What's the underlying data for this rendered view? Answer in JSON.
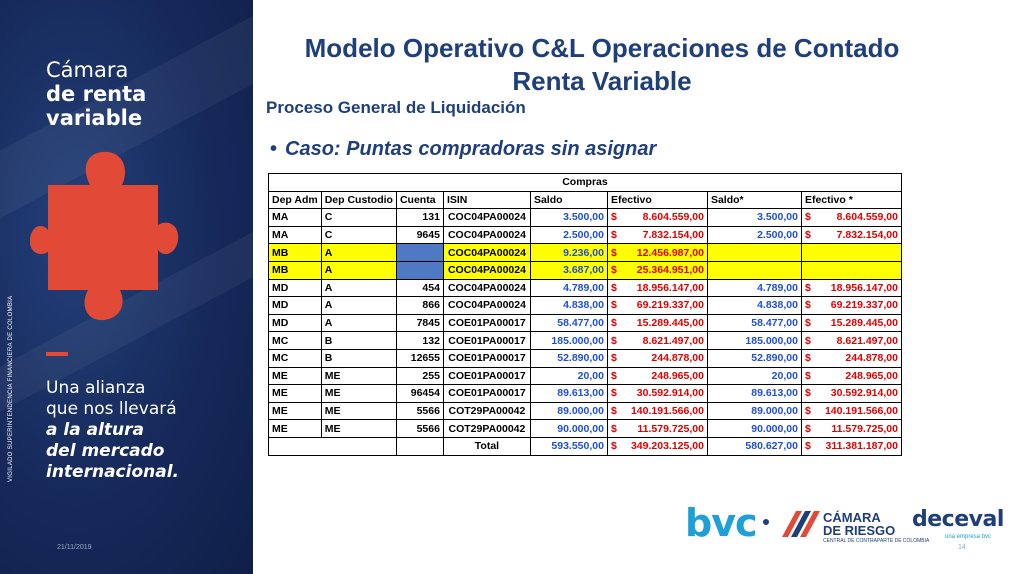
{
  "left_panel": {
    "brand_line1": "Cámara",
    "brand_line2": "de renta",
    "brand_line3": "variable",
    "tagline_1": "Una alianza",
    "tagline_2": "que nos llevará",
    "tagline_3": "a la altura",
    "tagline_4": "del mercado",
    "tagline_5": "internacional.",
    "vigilado": "VIGILADO SUPERINTENDENCIA FINANCIERA DE COLOMBIA",
    "date": "21/11/2019",
    "colors": {
      "background": "#16295a",
      "puzzle": "#e04a36",
      "accent_dash": "#e04a36"
    }
  },
  "header": {
    "title_line1": "Modelo Operativo C&L Operaciones de Contado",
    "title_line2": "Renta Variable",
    "subtitle": "Proceso General de Liquidación",
    "bullet": "Caso: Puntas compradoras sin asignar"
  },
  "table": {
    "group_header": "Compras",
    "columns": [
      "Dep Adm",
      "Dep Custodio",
      "Cuenta",
      "ISIN",
      "Saldo",
      "Efectivo",
      "Saldo*",
      "Efectivo *"
    ],
    "currency_symbol": "$",
    "rows": [
      {
        "dep_adm": "MA",
        "dep_custodio": "C",
        "cuenta": "131",
        "isin": "COC04PA00024",
        "saldo": "3.500,00",
        "efectivo": "8.604.559,00",
        "saldo2": "3.500,00",
        "efectivo2": "8.604.559,00",
        "highlight": false
      },
      {
        "dep_adm": "MA",
        "dep_custodio": "C",
        "cuenta": "9645",
        "isin": "COC04PA00024",
        "saldo": "2.500,00",
        "efectivo": "7.832.154,00",
        "saldo2": "2.500,00",
        "efectivo2": "7.832.154,00",
        "highlight": false
      },
      {
        "dep_adm": "MB",
        "dep_custodio": "A",
        "cuenta": "",
        "isin": "COC04PA00024",
        "saldo": "9.236,00",
        "efectivo": "12.456.987,00",
        "saldo2": "",
        "efectivo2": "",
        "highlight": true
      },
      {
        "dep_adm": "MB",
        "dep_custodio": "A",
        "cuenta": "",
        "isin": "COC04PA00024",
        "saldo": "3.687,00",
        "efectivo": "25.364.951,00",
        "saldo2": "",
        "efectivo2": "",
        "highlight": true
      },
      {
        "dep_adm": "MD",
        "dep_custodio": "A",
        "cuenta": "454",
        "isin": "COC04PA00024",
        "saldo": "4.789,00",
        "efectivo": "18.956.147,00",
        "saldo2": "4.789,00",
        "efectivo2": "18.956.147,00",
        "highlight": false
      },
      {
        "dep_adm": "MD",
        "dep_custodio": "A",
        "cuenta": "866",
        "isin": "COC04PA00024",
        "saldo": "4.838,00",
        "efectivo": "69.219.337,00",
        "saldo2": "4.838,00",
        "efectivo2": "69.219.337,00",
        "highlight": false
      },
      {
        "dep_adm": "MD",
        "dep_custodio": "A",
        "cuenta": "7845",
        "isin": "COE01PA00017",
        "saldo": "58.477,00",
        "efectivo": "15.289.445,00",
        "saldo2": "58.477,00",
        "efectivo2": "15.289.445,00",
        "highlight": false
      },
      {
        "dep_adm": "MC",
        "dep_custodio": "B",
        "cuenta": "132",
        "isin": "COE01PA00017",
        "saldo": "185.000,00",
        "efectivo": "8.621.497,00",
        "saldo2": "185.000,00",
        "efectivo2": "8.621.497,00",
        "highlight": false
      },
      {
        "dep_adm": "MC",
        "dep_custodio": "B",
        "cuenta": "12655",
        "isin": "COE01PA00017",
        "saldo": "52.890,00",
        "efectivo": "244.878,00",
        "saldo2": "52.890,00",
        "efectivo2": "244.878,00",
        "highlight": false
      },
      {
        "dep_adm": "ME",
        "dep_custodio": "ME",
        "cuenta": "255",
        "isin": "COE01PA00017",
        "saldo": "20,00",
        "efectivo": "248.965,00",
        "saldo2": "20,00",
        "efectivo2": "248.965,00",
        "highlight": false
      },
      {
        "dep_adm": "ME",
        "dep_custodio": "ME",
        "cuenta": "96454",
        "isin": "COE01PA00017",
        "saldo": "89.613,00",
        "efectivo": "30.592.914,00",
        "saldo2": "89.613,00",
        "efectivo2": "30.592.914,00",
        "highlight": false
      },
      {
        "dep_adm": "ME",
        "dep_custodio": "ME",
        "cuenta": "5566",
        "isin": "COT29PA00042",
        "saldo": "89.000,00",
        "efectivo": "140.191.566,00",
        "saldo2": "89.000,00",
        "efectivo2": "140.191.566,00",
        "highlight": false
      },
      {
        "dep_adm": "ME",
        "dep_custodio": "ME",
        "cuenta": "5566",
        "isin": "COT29PA00042",
        "saldo": "90.000,00",
        "efectivo": "11.579.725,00",
        "saldo2": "90.000,00",
        "efectivo2": "11.579.725,00",
        "highlight": false
      }
    ],
    "total": {
      "label": "Total",
      "saldo": "593.550,00",
      "efectivo": "349.203.125,00",
      "saldo2": "580.627,00",
      "efectivo2": "311.381.187,00"
    },
    "colors": {
      "highlight": "#ffff00",
      "blue_value": "#1f4fd6",
      "money": "#e00000",
      "blank_cell": "#4f79c2"
    }
  },
  "footer": {
    "logo_bvc": "bvc",
    "logo_camara_1": "CÁMARA",
    "logo_camara_2": "DE RIESGO",
    "logo_camara_3": "CENTRAL DE CONTRAPARTE DE COLOMBIA",
    "logo_deceval": "deceval",
    "logo_deceval_sub": "una empresa bvc",
    "page_number": "14"
  }
}
